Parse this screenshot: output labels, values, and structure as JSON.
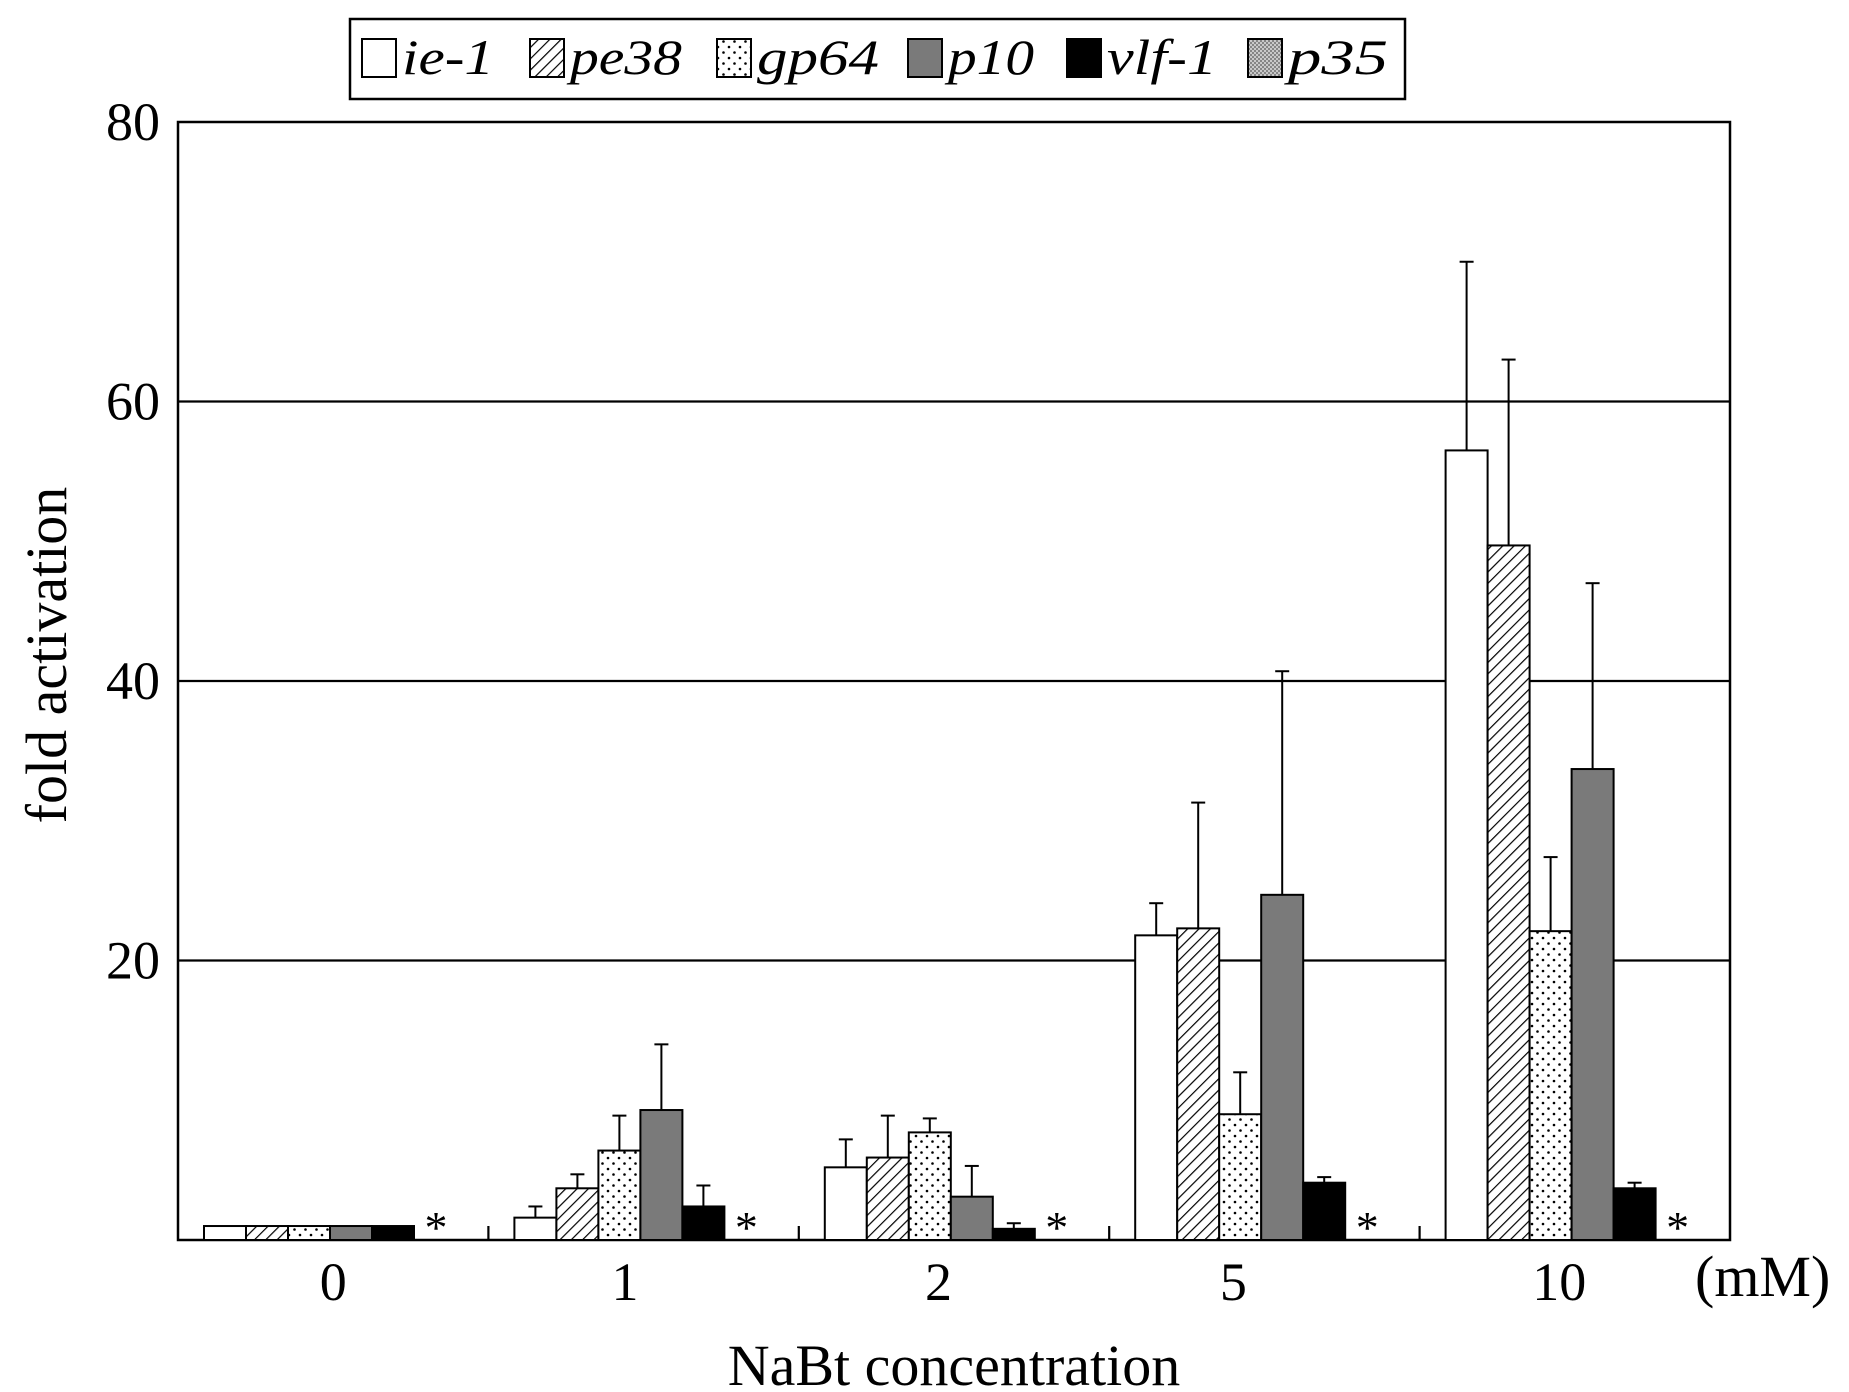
{
  "chart_data": {
    "type": "bar",
    "xlabel": "NaBt concentration",
    "ylabel": "fold activation",
    "x_unit": "(mM)",
    "ylim": [
      0,
      80
    ],
    "yticks": [
      20,
      40,
      60,
      80
    ],
    "grid": true,
    "legend_position": "top",
    "categories": [
      "0",
      "1",
      "2",
      "5",
      "10"
    ],
    "series": [
      {
        "name": "ie-1",
        "pattern": "white",
        "values": [
          1.0,
          1.6,
          5.2,
          21.8,
          56.5
        ],
        "errors": [
          0,
          0.8,
          2.0,
          2.3,
          13.5
        ]
      },
      {
        "name": "pe38",
        "pattern": "hatch",
        "values": [
          1.0,
          3.7,
          5.9,
          22.3,
          49.7
        ],
        "errors": [
          0,
          1.0,
          3.0,
          9.0,
          13.3
        ]
      },
      {
        "name": "gp64",
        "pattern": "dots",
        "values": [
          1.0,
          6.4,
          7.7,
          9.0,
          22.1
        ],
        "errors": [
          0,
          2.5,
          1.0,
          3.0,
          5.3
        ]
      },
      {
        "name": "p10",
        "pattern": "gray",
        "values": [
          1.0,
          9.3,
          3.1,
          24.7,
          33.7
        ],
        "errors": [
          0,
          4.7,
          2.2,
          16.0,
          13.3
        ]
      },
      {
        "name": "vlf-1",
        "pattern": "black",
        "values": [
          1.0,
          2.4,
          0.8,
          4.1,
          3.7
        ],
        "errors": [
          0,
          1.5,
          0.4,
          0.4,
          0.4
        ]
      },
      {
        "name": "p35",
        "pattern": "stipple",
        "values": [
          null,
          null,
          null,
          null,
          null
        ],
        "errors": [
          0,
          0,
          0,
          0,
          0
        ]
      }
    ],
    "annotations": [
      "*",
      "*",
      "*",
      "*",
      "*"
    ]
  },
  "colors": {
    "gray": "#7a7a7a",
    "black": "#000000",
    "white": "#ffffff",
    "stipple": "#b8b8b8"
  }
}
